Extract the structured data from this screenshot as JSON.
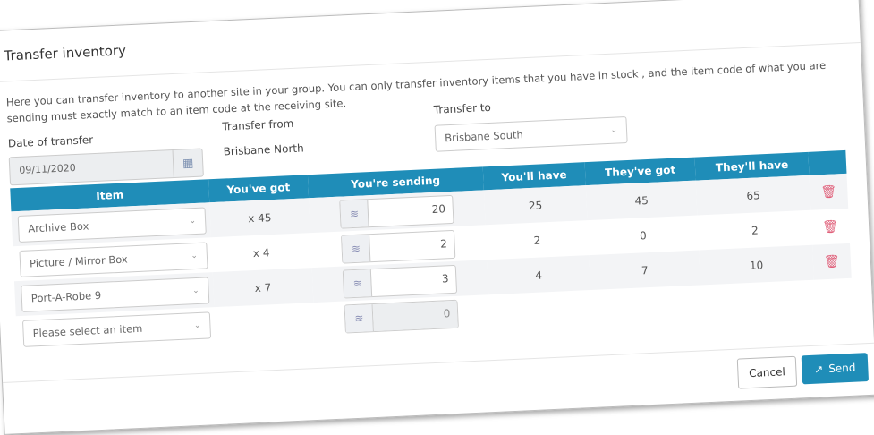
{
  "title": "Transfer inventory",
  "intro": "Here you can transfer inventory to another site in your group. You can only transfer inventory items that you have in stock , and the item code of what you are sending must exactly match to an item code at the receiving site.",
  "date_label": "Date of transfer",
  "date_value": "09/11/2020",
  "from_label": "Transfer from",
  "from_value": "Brisbane North",
  "to_label": "Transfer to",
  "to_value": "Brisbane South",
  "columns": [
    "Item",
    "You've got",
    "You're sending",
    "You'll have",
    "They've got",
    "They'll have"
  ],
  "rows": [
    {
      "item": "Archive Box",
      "got": "x 45",
      "sending": "20",
      "youll": "25",
      "theyve": "45",
      "theyll": "65"
    },
    {
      "item": "Picture / Mirror Box",
      "got": "x 4",
      "sending": "2",
      "youll": "2",
      "theyve": "0",
      "theyll": "2"
    },
    {
      "item": "Port-A-Robe 9",
      "got": "x 7",
      "sending": "3",
      "youll": "4",
      "theyve": "7",
      "theyll": "10"
    }
  ],
  "empty_row": {
    "placeholder": "Please select an item",
    "sending": "0"
  },
  "buttons": {
    "cancel": "Cancel",
    "send": "Send"
  },
  "colors": {
    "accent": "#1f8db8",
    "delete": "#e0607a"
  }
}
